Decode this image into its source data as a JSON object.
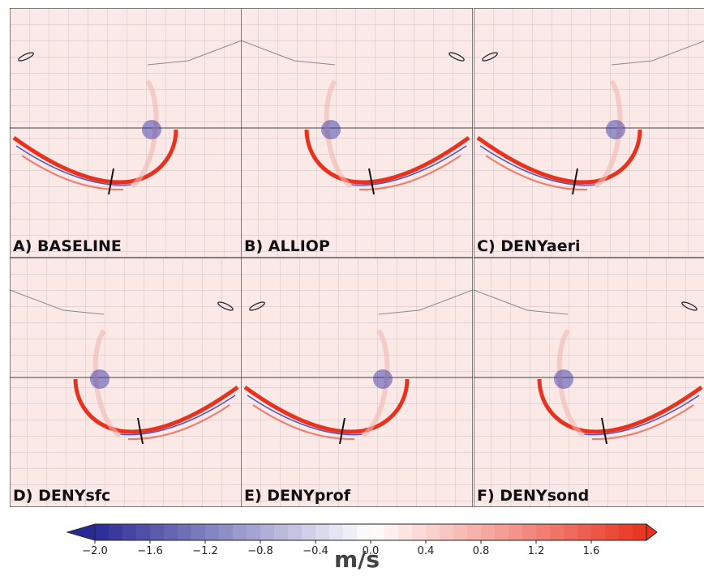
{
  "panels": [
    {
      "label": "A) BASELINE"
    },
    {
      "label": "B) ALLIOP"
    },
    {
      "label": "C) DENYaeri"
    },
    {
      "label": "D) DENYsfc"
    },
    {
      "label": "E) DENYprof"
    },
    {
      "label": "F) DENYsond"
    }
  ],
  "colorbar": {
    "xlim": [
      -2,
      2
    ],
    "xticks": [
      {
        "value": -2,
        "label": "−2.0"
      },
      {
        "value": -1.6,
        "label": "−1.6"
      },
      {
        "value": -1.2,
        "label": "−1.2"
      },
      {
        "value": -0.8,
        "label": "−0.8"
      },
      {
        "value": -0.4,
        "label": "−0.4"
      },
      {
        "value": 0,
        "label": "0.0"
      },
      0.4,
      0.8,
      1.2,
      1.6
    ],
    "unit": "m/s",
    "low_color": "#2a2a96",
    "mid_color": "#ffffff",
    "high_color": "#e8321e"
  }
}
